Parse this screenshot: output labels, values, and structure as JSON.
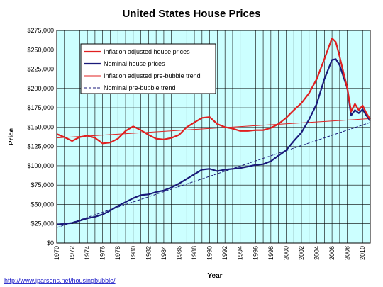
{
  "chart_data": {
    "type": "line",
    "title": "United States House Prices",
    "xlabel": "Year",
    "ylabel": "Price",
    "xlim": [
      1970,
      2011
    ],
    "ylim": [
      0,
      275000
    ],
    "y_ticks": [
      0,
      25000,
      50000,
      75000,
      100000,
      125000,
      150000,
      175000,
      200000,
      225000,
      250000,
      275000
    ],
    "y_tick_labels": [
      "$0",
      "$25,000",
      "$50,000",
      "$75,000",
      "$100,000",
      "$125,000",
      "$150,000",
      "$175,000",
      "$200,000",
      "$225,000",
      "$250,000",
      "$275,000"
    ],
    "x_tick_labels": [
      "1970",
      "1972",
      "1974",
      "1976",
      "1978",
      "1980",
      "1982",
      "1984",
      "1986",
      "1988",
      "1990",
      "1992",
      "1994",
      "1996",
      "1998",
      "2000",
      "2002",
      "2004",
      "2006",
      "2008",
      "2010"
    ],
    "grid": true,
    "plot_background": "#ccffff",
    "legend_position": "top-left",
    "series": [
      {
        "name": "Inflation adjusted house prices",
        "color": "#e02020",
        "style": "solid-thick",
        "x": [
          1970,
          1971,
          1972,
          1973,
          1974,
          1975,
          1976,
          1977,
          1978,
          1979,
          1980,
          1981,
          1982,
          1983,
          1984,
          1985,
          1986,
          1987,
          1988,
          1989,
          1990,
          1991,
          1992,
          1993,
          1994,
          1995,
          1996,
          1997,
          1998,
          1999,
          2000,
          2001,
          2002,
          2003,
          2004,
          2005,
          2006,
          2006.5,
          2007,
          2008,
          2008.5,
          2009,
          2009.5,
          2010,
          2010.5,
          2011
        ],
        "y": [
          141000,
          137000,
          132000,
          137000,
          139000,
          136000,
          129000,
          130000,
          135000,
          145000,
          151000,
          146000,
          140000,
          135000,
          134000,
          136000,
          140000,
          150000,
          156000,
          162000,
          163000,
          154000,
          150000,
          148000,
          145000,
          145000,
          146000,
          146000,
          149000,
          154000,
          162000,
          172000,
          181000,
          194000,
          212000,
          238000,
          265000,
          260000,
          241000,
          200000,
          170000,
          180000,
          172000,
          178000,
          168000,
          160000
        ]
      },
      {
        "name": "Nominal house prices",
        "color": "#1a1a7a",
        "style": "solid-thick",
        "x": [
          1970,
          1971,
          1972,
          1973,
          1974,
          1975,
          1976,
          1977,
          1978,
          1979,
          1980,
          1981,
          1982,
          1983,
          1984,
          1985,
          1986,
          1987,
          1988,
          1989,
          1990,
          1991,
          1992,
          1993,
          1994,
          1995,
          1996,
          1997,
          1998,
          1999,
          2000,
          2001,
          2002,
          2003,
          2004,
          2005,
          2006,
          2006.5,
          2007,
          2008,
          2008.5,
          2009,
          2009.5,
          2010,
          2010.5,
          2011
        ],
        "y": [
          24000,
          25000,
          26000,
          29000,
          32000,
          34000,
          37000,
          42000,
          48000,
          53000,
          58000,
          62000,
          63000,
          66000,
          68000,
          72000,
          77000,
          83000,
          89000,
          95000,
          96000,
          93000,
          95000,
          96000,
          97000,
          99000,
          101000,
          102000,
          106000,
          113000,
          120000,
          132000,
          143000,
          160000,
          180000,
          212000,
          237000,
          238000,
          230000,
          200000,
          165000,
          172000,
          168000,
          173000,
          165000,
          158000
        ]
      },
      {
        "name": "Inflation adjusted pre-bubble trend",
        "color": "#e02020",
        "style": "thin",
        "x": [
          1970,
          2011
        ],
        "y": [
          136000,
          161000
        ]
      },
      {
        "name": "Nominal pre-bubble trend",
        "color": "#1a1a7a",
        "style": "dashed-thin",
        "x": [
          1970,
          2011
        ],
        "y": [
          20000,
          156000
        ]
      }
    ]
  },
  "source": {
    "url_text": "http://www.jparsons.net/housingbubble/"
  }
}
